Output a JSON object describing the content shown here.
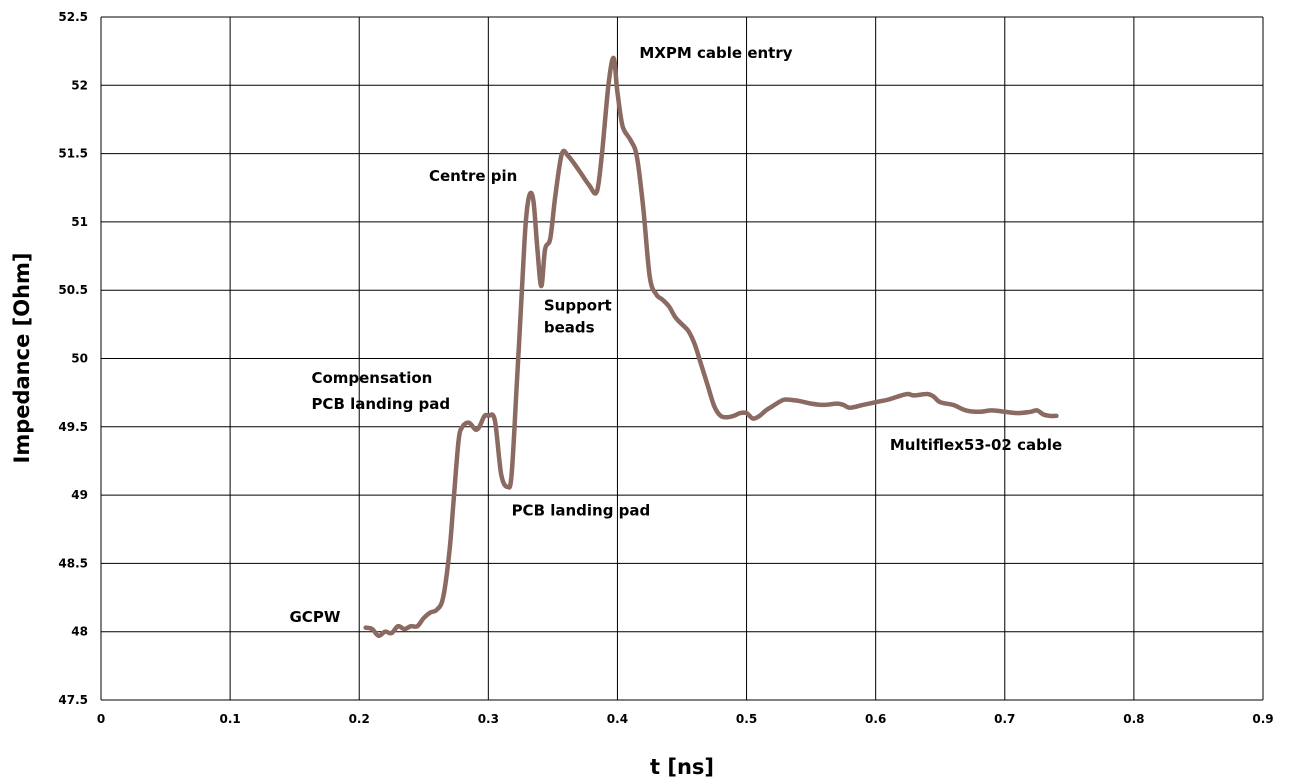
{
  "chart_data": {
    "type": "line",
    "xlabel": "t [ns]",
    "ylabel": "Impedance [Ohm]",
    "xlim": [
      0,
      0.9
    ],
    "ylim": [
      47.5,
      52.5
    ],
    "x_ticks": [
      "0",
      "0.1",
      "0.2",
      "0.3",
      "0.4",
      "0.5",
      "0.6",
      "0.7",
      "0.8",
      "0.9"
    ],
    "y_ticks": [
      "47.5",
      "48",
      "48.5",
      "49",
      "49.5",
      "50",
      "50.5",
      "51",
      "51.5",
      "52",
      "52.5"
    ],
    "grid": true,
    "series": [
      {
        "color": "#8B6A62",
        "points": [
          [
            0.205,
            48.03
          ],
          [
            0.21,
            48.02
          ],
          [
            0.215,
            47.97
          ],
          [
            0.22,
            48.0
          ],
          [
            0.225,
            47.99
          ],
          [
            0.23,
            48.04
          ],
          [
            0.235,
            48.02
          ],
          [
            0.24,
            48.04
          ],
          [
            0.245,
            48.04
          ],
          [
            0.25,
            48.1
          ],
          [
            0.255,
            48.14
          ],
          [
            0.26,
            48.16
          ],
          [
            0.265,
            48.25
          ],
          [
            0.27,
            48.6
          ],
          [
            0.273,
            48.95
          ],
          [
            0.277,
            49.4
          ],
          [
            0.28,
            49.5
          ],
          [
            0.285,
            49.53
          ],
          [
            0.29,
            49.48
          ],
          [
            0.293,
            49.5
          ],
          [
            0.297,
            49.58
          ],
          [
            0.3,
            49.58
          ],
          [
            0.305,
            49.55
          ],
          [
            0.31,
            49.15
          ],
          [
            0.315,
            49.06
          ],
          [
            0.318,
            49.15
          ],
          [
            0.322,
            49.8
          ],
          [
            0.326,
            50.5
          ],
          [
            0.329,
            51.0
          ],
          [
            0.332,
            51.2
          ],
          [
            0.335,
            51.15
          ],
          [
            0.338,
            50.8
          ],
          [
            0.341,
            50.53
          ],
          [
            0.344,
            50.8
          ],
          [
            0.348,
            50.88
          ],
          [
            0.352,
            51.2
          ],
          [
            0.357,
            51.5
          ],
          [
            0.362,
            51.48
          ],
          [
            0.37,
            51.38
          ],
          [
            0.378,
            51.27
          ],
          [
            0.384,
            51.22
          ],
          [
            0.388,
            51.5
          ],
          [
            0.393,
            52.0
          ],
          [
            0.397,
            52.2
          ],
          [
            0.4,
            51.95
          ],
          [
            0.404,
            51.7
          ],
          [
            0.41,
            51.6
          ],
          [
            0.415,
            51.48
          ],
          [
            0.42,
            51.1
          ],
          [
            0.425,
            50.6
          ],
          [
            0.43,
            50.47
          ],
          [
            0.435,
            50.43
          ],
          [
            0.44,
            50.38
          ],
          [
            0.445,
            50.3
          ],
          [
            0.45,
            50.25
          ],
          [
            0.455,
            50.2
          ],
          [
            0.46,
            50.1
          ],
          [
            0.465,
            49.95
          ],
          [
            0.47,
            49.8
          ],
          [
            0.475,
            49.65
          ],
          [
            0.48,
            49.58
          ],
          [
            0.485,
            49.57
          ],
          [
            0.49,
            49.58
          ],
          [
            0.495,
            49.6
          ],
          [
            0.5,
            49.6
          ],
          [
            0.505,
            49.56
          ],
          [
            0.51,
            49.58
          ],
          [
            0.515,
            49.62
          ],
          [
            0.52,
            49.65
          ],
          [
            0.525,
            49.68
          ],
          [
            0.53,
            49.7
          ],
          [
            0.54,
            49.69
          ],
          [
            0.55,
            49.67
          ],
          [
            0.56,
            49.66
          ],
          [
            0.57,
            49.67
          ],
          [
            0.575,
            49.66
          ],
          [
            0.58,
            49.64
          ],
          [
            0.59,
            49.66
          ],
          [
            0.6,
            49.68
          ],
          [
            0.61,
            49.7
          ],
          [
            0.62,
            49.73
          ],
          [
            0.625,
            49.74
          ],
          [
            0.63,
            49.73
          ],
          [
            0.64,
            49.74
          ],
          [
            0.645,
            49.72
          ],
          [
            0.65,
            49.68
          ],
          [
            0.66,
            49.66
          ],
          [
            0.67,
            49.62
          ],
          [
            0.68,
            49.61
          ],
          [
            0.69,
            49.62
          ],
          [
            0.7,
            49.61
          ],
          [
            0.71,
            49.6
          ],
          [
            0.72,
            49.61
          ],
          [
            0.725,
            49.62
          ],
          [
            0.73,
            49.59
          ],
          [
            0.735,
            49.58
          ],
          [
            0.74,
            49.58
          ]
        ]
      }
    ],
    "annotations": [
      {
        "label": "GCPW",
        "x": 0.146,
        "y": 48.07
      },
      {
        "label": "Compensation",
        "x": 0.163,
        "y": 49.82
      },
      {
        "label": "PCB landing pad",
        "x": 0.163,
        "y": 49.63
      },
      {
        "label": "PCB landing pad",
        "x": 0.318,
        "y": 48.85
      },
      {
        "label": "Centre pin",
        "x": 0.254,
        "y": 51.3
      },
      {
        "label": "Support",
        "x": 0.343,
        "y": 50.35
      },
      {
        "label": "beads",
        "x": 0.343,
        "y": 50.19
      },
      {
        "label": "MXPM  cable entry",
        "x": 0.417,
        "y": 52.2
      },
      {
        "label": "Multiflex53-02 cable",
        "x": 0.611,
        "y": 49.33
      }
    ]
  }
}
